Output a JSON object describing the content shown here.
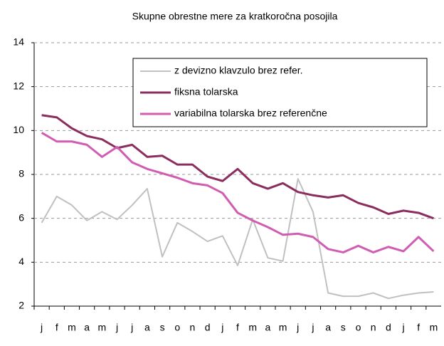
{
  "chart_data": {
    "type": "line",
    "title": "Skupne obrestne mere za kratkoročna posojila",
    "categories": [
      "j",
      "f",
      "m",
      "a",
      "m",
      "j",
      "j",
      "a",
      "s",
      "o",
      "n",
      "d",
      "j",
      "f",
      "m",
      "a",
      "m",
      "j",
      "j",
      "a",
      "s",
      "o",
      "n",
      "d",
      "j",
      "f",
      "m"
    ],
    "series": [
      {
        "name": "z devizno klavzulo brez refer.",
        "color": "#c0c0c0",
        "values": [
          5.8,
          7.0,
          6.6,
          5.9,
          6.3,
          5.95,
          6.6,
          7.35,
          4.25,
          5.8,
          5.4,
          4.95,
          5.2,
          3.85,
          5.95,
          4.2,
          4.05,
          7.8,
          6.3,
          2.6,
          2.45,
          2.45,
          2.6,
          2.35,
          2.5,
          2.6,
          2.65
        ]
      },
      {
        "name": "fiksna tolarska",
        "color": "#8b2d5e",
        "values": [
          10.7,
          10.6,
          10.1,
          9.75,
          9.6,
          9.2,
          9.35,
          8.8,
          8.85,
          8.45,
          8.45,
          7.9,
          7.7,
          8.25,
          7.6,
          7.35,
          7.6,
          7.2,
          7.05,
          6.95,
          7.05,
          6.7,
          6.5,
          6.2,
          6.35,
          6.25,
          6.0
        ]
      },
      {
        "name": "variabilna tolarska brez referenčne",
        "color": "#d15db3",
        "values": [
          9.9,
          9.5,
          9.5,
          9.35,
          8.8,
          9.25,
          8.55,
          8.25,
          8.05,
          7.85,
          7.6,
          7.5,
          7.15,
          6.25,
          5.9,
          5.6,
          5.25,
          5.3,
          5.15,
          4.6,
          4.45,
          4.75,
          4.45,
          4.7,
          4.5,
          5.15,
          4.5
        ]
      }
    ],
    "ylim": [
      2,
      14
    ],
    "yticks": [
      2,
      4,
      6,
      8,
      10,
      12,
      14
    ],
    "grid": true
  }
}
